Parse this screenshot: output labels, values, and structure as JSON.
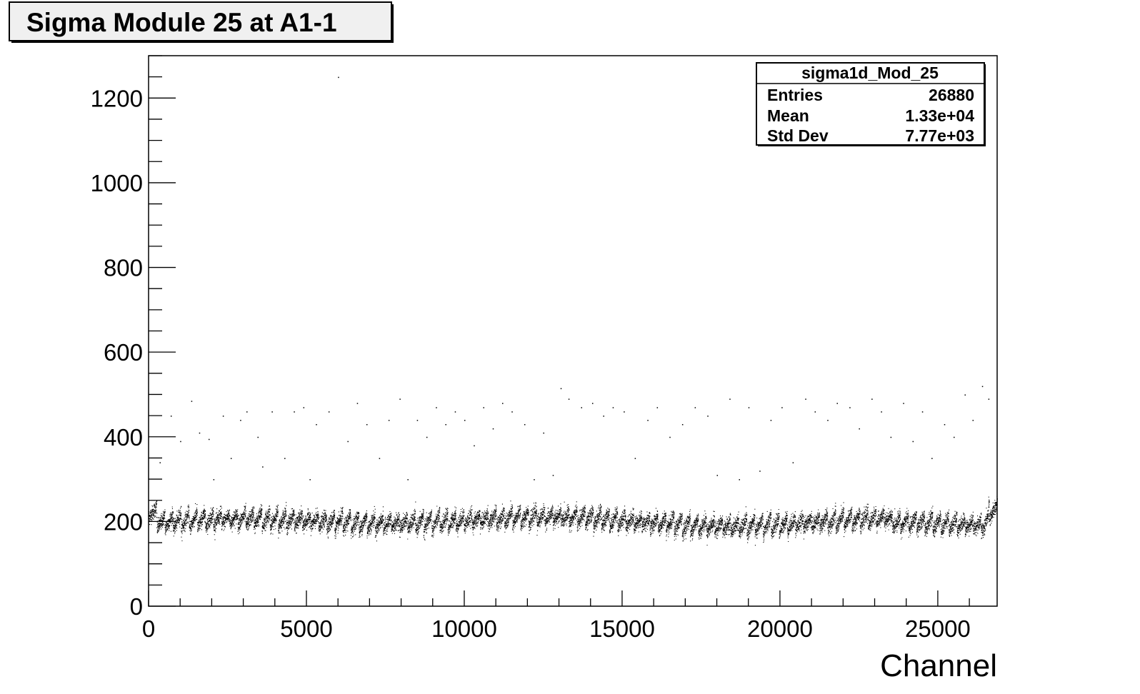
{
  "chart_data": {
    "type": "scatter",
    "title": "Sigma Module 25 at A1-1",
    "xlabel": "Channel",
    "ylabel": "",
    "xlim": [
      0,
      26880
    ],
    "ylim": [
      0,
      1300
    ],
    "x_ticks": [
      0,
      5000,
      10000,
      15000,
      20000,
      25000
    ],
    "y_ticks": [
      0,
      200,
      400,
      600,
      800,
      1000,
      1200
    ],
    "x_tick_labels": [
      "0",
      "5000",
      "10000",
      "15000",
      "20000",
      "25000"
    ],
    "y_tick_labels": [
      "0",
      "200",
      "400",
      "600",
      "800",
      "1000",
      "1200"
    ],
    "legend_position": "top-right",
    "band": {
      "description_baseline": 200,
      "channel_start": 0,
      "channel_end": 26880,
      "segment_period": 256
    },
    "series": [
      {
        "name": "sigma1d_Mod_25",
        "stats": {
          "entries_label": "Entries",
          "entries": "26880",
          "mean_label": "Mean",
          "mean": "1.33e+04",
          "stddev_label": "Std Dev",
          "stddev": "7.77e+03"
        }
      }
    ],
    "outliers": [
      [
        350,
        340
      ],
      [
        700,
        450
      ],
      [
        1000,
        390
      ],
      [
        1350,
        485
      ],
      [
        1600,
        410
      ],
      [
        1900,
        395
      ],
      [
        2050,
        300
      ],
      [
        2350,
        450
      ],
      [
        2600,
        350
      ],
      [
        2900,
        440
      ],
      [
        3100,
        460
      ],
      [
        3450,
        400
      ],
      [
        3600,
        330
      ],
      [
        3900,
        460
      ],
      [
        4300,
        350
      ],
      [
        4600,
        460
      ],
      [
        4900,
        470
      ],
      [
        5100,
        300
      ],
      [
        5300,
        430
      ],
      [
        5700,
        460
      ],
      [
        6000,
        1250
      ],
      [
        6300,
        390
      ],
      [
        6600,
        480
      ],
      [
        6900,
        430
      ],
      [
        7300,
        350
      ],
      [
        7600,
        440
      ],
      [
        7950,
        490
      ],
      [
        8200,
        300
      ],
      [
        8500,
        440
      ],
      [
        8800,
        400
      ],
      [
        9100,
        470
      ],
      [
        9400,
        430
      ],
      [
        9700,
        460
      ],
      [
        10000,
        440
      ],
      [
        10300,
        380
      ],
      [
        10600,
        470
      ],
      [
        10900,
        420
      ],
      [
        11200,
        480
      ],
      [
        11500,
        460
      ],
      [
        11900,
        430
      ],
      [
        12200,
        300
      ],
      [
        12500,
        410
      ],
      [
        12800,
        310
      ],
      [
        13050,
        515
      ],
      [
        13300,
        490
      ],
      [
        13700,
        470
      ],
      [
        14050,
        480
      ],
      [
        14400,
        450
      ],
      [
        14700,
        470
      ],
      [
        15050,
        460
      ],
      [
        15400,
        350
      ],
      [
        15800,
        440
      ],
      [
        16100,
        470
      ],
      [
        16500,
        400
      ],
      [
        16900,
        430
      ],
      [
        17300,
        470
      ],
      [
        17700,
        450
      ],
      [
        18000,
        310
      ],
      [
        18400,
        490
      ],
      [
        18700,
        300
      ],
      [
        19000,
        470
      ],
      [
        19350,
        320
      ],
      [
        19700,
        440
      ],
      [
        20050,
        470
      ],
      [
        20400,
        340
      ],
      [
        20800,
        490
      ],
      [
        21100,
        460
      ],
      [
        21500,
        440
      ],
      [
        21800,
        480
      ],
      [
        22200,
        470
      ],
      [
        22500,
        420
      ],
      [
        22900,
        490
      ],
      [
        23200,
        460
      ],
      [
        23500,
        400
      ],
      [
        23900,
        480
      ],
      [
        24200,
        390
      ],
      [
        24500,
        460
      ],
      [
        24800,
        350
      ],
      [
        25200,
        430
      ],
      [
        25500,
        400
      ],
      [
        25850,
        500
      ],
      [
        26100,
        440
      ],
      [
        26400,
        520
      ],
      [
        26600,
        490
      ]
    ]
  }
}
